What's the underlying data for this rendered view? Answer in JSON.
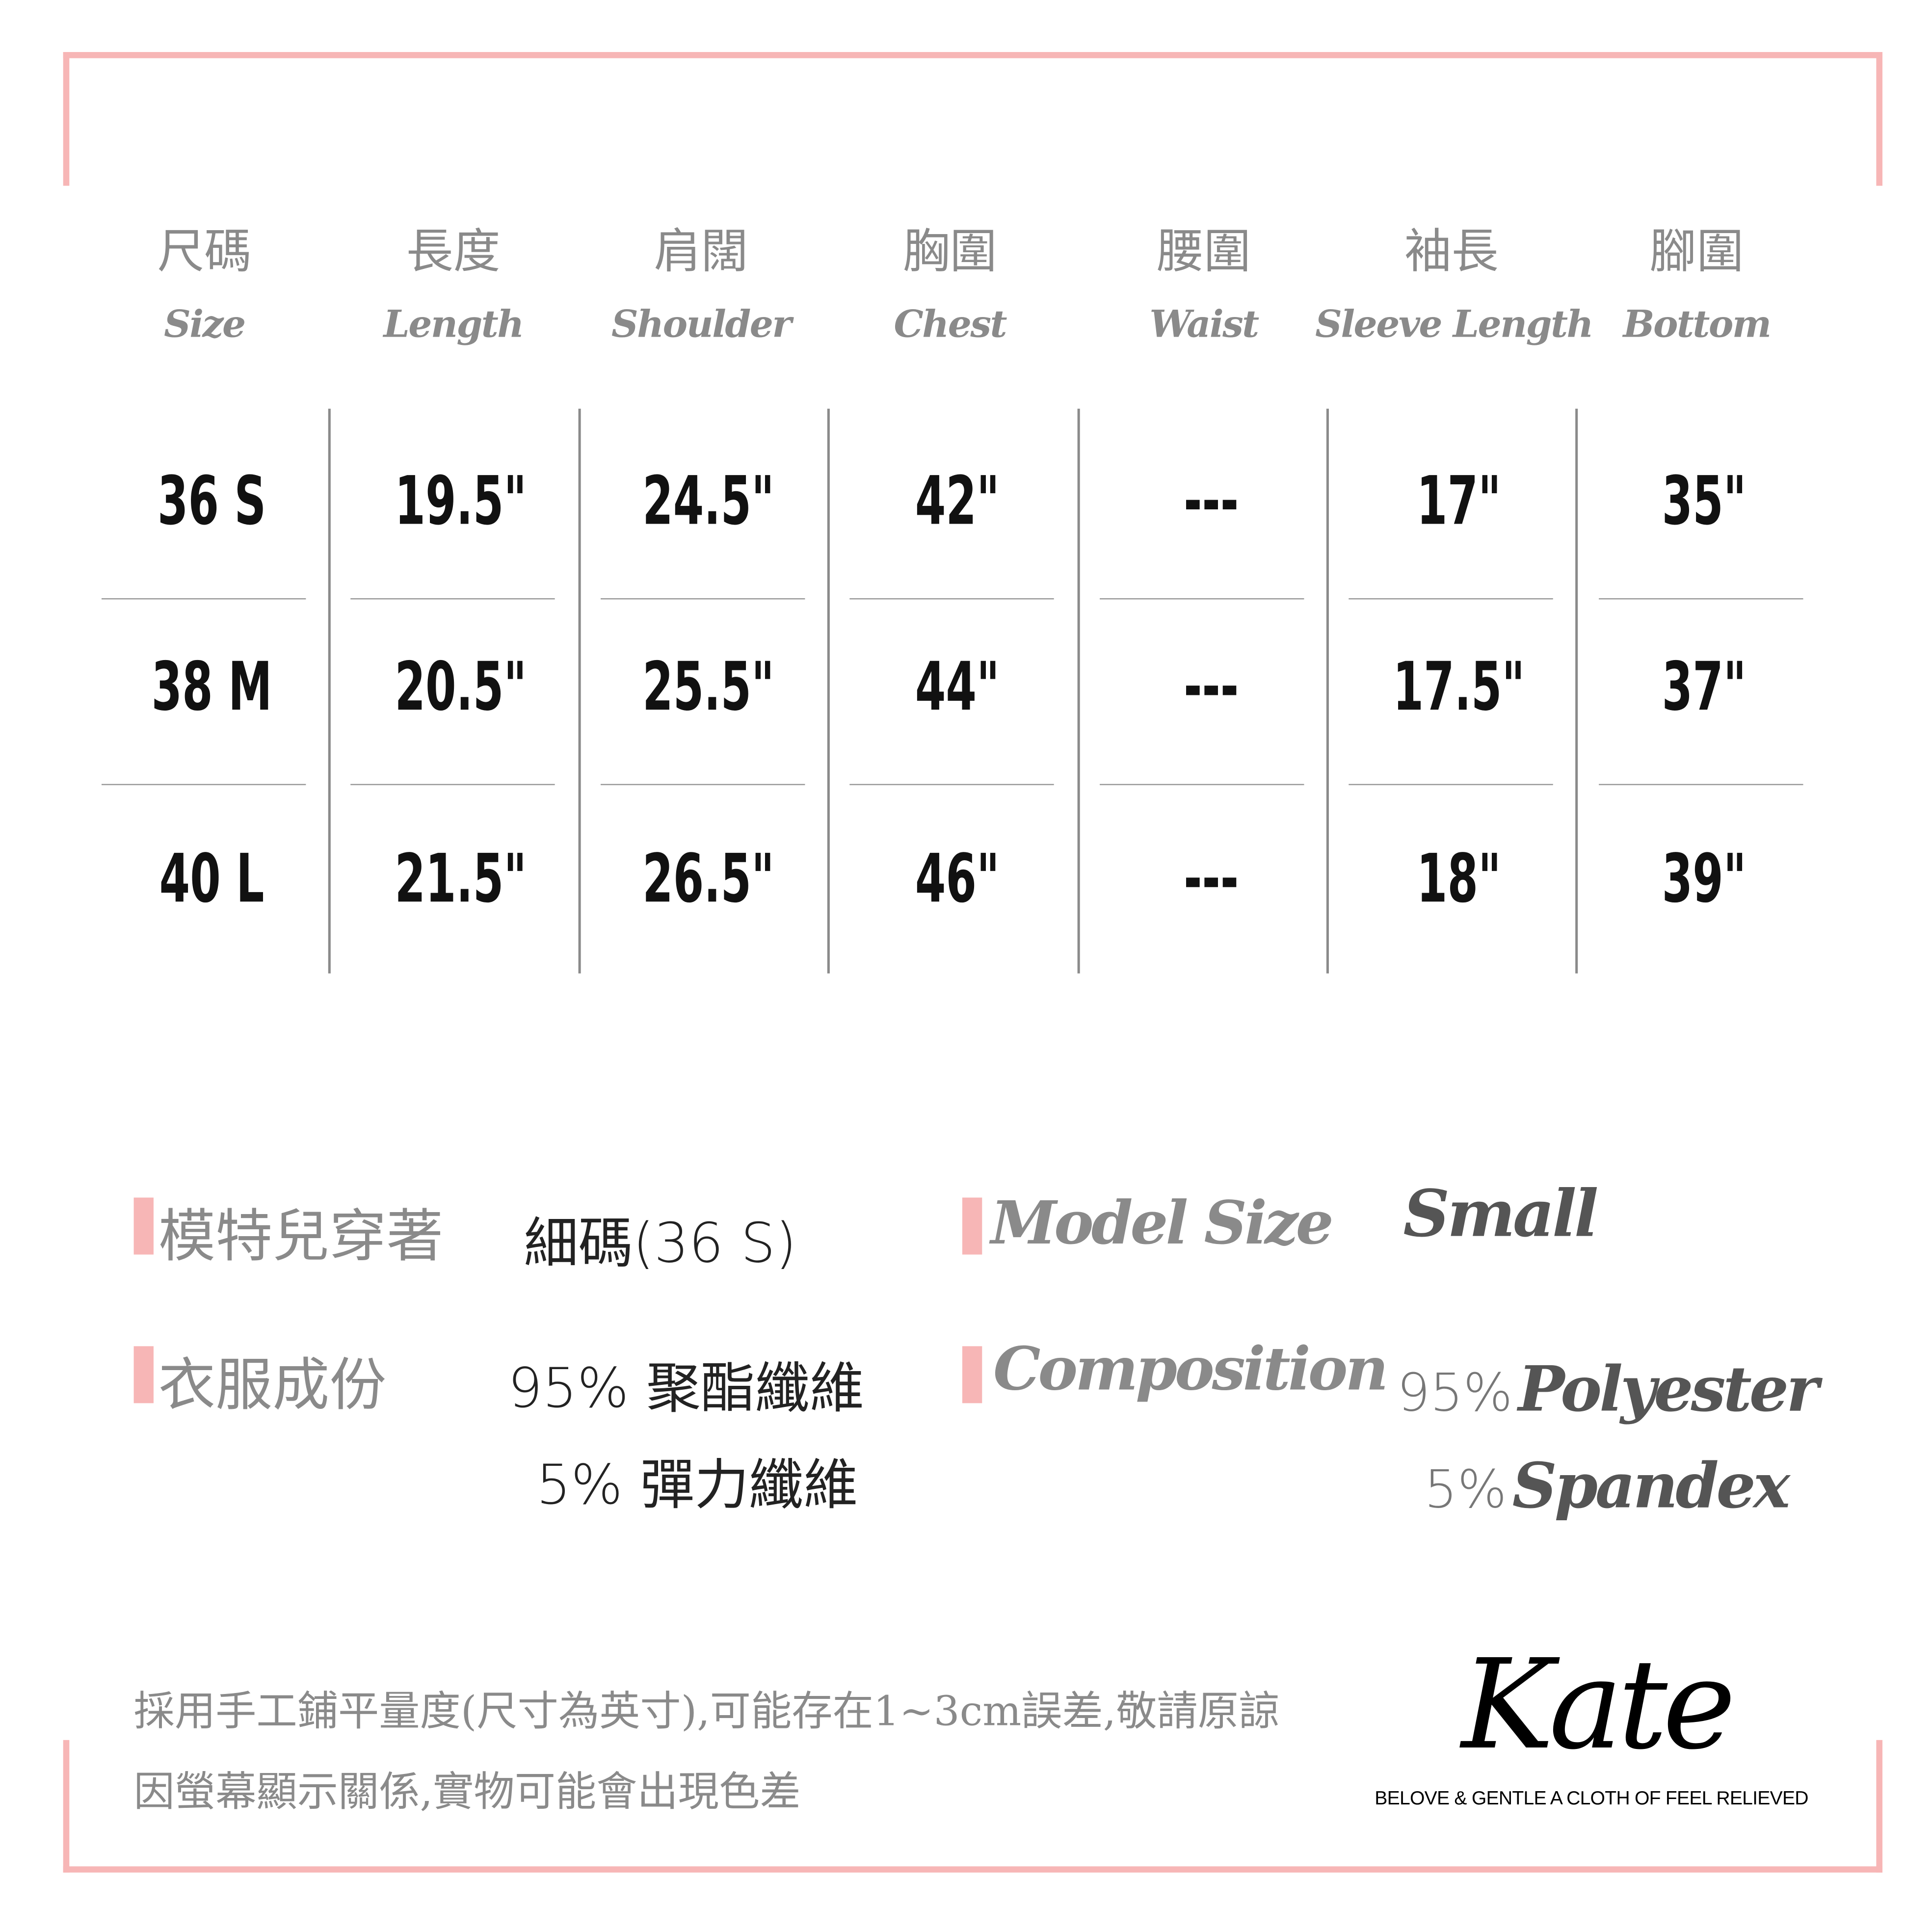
{
  "colors": {
    "frame": "#f7b6b6",
    "header_text": "#8a8a8a",
    "value_text": "#111111"
  },
  "headers": [
    {
      "zh": "尺碼",
      "en": "Size"
    },
    {
      "zh": "長度",
      "en": "Length"
    },
    {
      "zh": "肩闊",
      "en": "Shoulder"
    },
    {
      "zh": "胸圍",
      "en": "Chest"
    },
    {
      "zh": "腰圍",
      "en": "Waist"
    },
    {
      "zh": "袖長",
      "en": "Sleeve Length"
    },
    {
      "zh": "腳圍",
      "en": "Bottom"
    }
  ],
  "rows": [
    [
      "36 S",
      "19.5\"",
      "24.5\"",
      "42\"",
      "---",
      "17\"",
      "35\""
    ],
    [
      "38 M",
      "20.5\"",
      "25.5\"",
      "44\"",
      "---",
      "17.5\"",
      "37\""
    ],
    [
      "40 L",
      "21.5\"",
      "26.5\"",
      "46\"",
      "---",
      "18\"",
      "39\""
    ]
  ],
  "model": {
    "zh_label": "模特兒穿著",
    "zh_value": "細碼(36 S)",
    "en_label": "Model Size",
    "en_value": "Small"
  },
  "composition": {
    "zh_label": "衣服成份",
    "zh_line1": "95% 聚酯纖維",
    "zh_line2": "5% 彈力纖維",
    "en_label": "Composition",
    "en_pct1": "95%",
    "en_mat1": "Polyester",
    "en_pct2": "5%",
    "en_mat2": "Spandex"
  },
  "footer": {
    "line1": "採用手工鋪平量度(尺寸為英寸),可能存在1~3cm誤差,敬請原諒",
    "line2": "因螢幕顯示關係,實物可能會出現色差"
  },
  "brand": {
    "logo": "Kate",
    "tagline": "BELOVE & GENTLE A CLOTH OF FEEL RELIEVED"
  }
}
